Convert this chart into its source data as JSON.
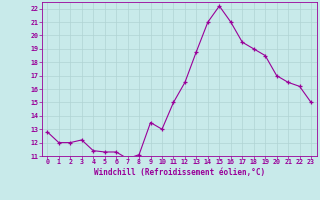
{
  "x": [
    0,
    1,
    2,
    3,
    4,
    5,
    6,
    7,
    8,
    9,
    10,
    11,
    12,
    13,
    14,
    15,
    16,
    17,
    18,
    19,
    20,
    21,
    22,
    23
  ],
  "y": [
    12.8,
    12.0,
    12.0,
    12.2,
    11.4,
    11.3,
    11.3,
    10.8,
    11.1,
    13.5,
    13.0,
    15.0,
    16.5,
    18.8,
    21.0,
    22.2,
    21.0,
    19.5,
    19.0,
    18.5,
    17.0,
    16.5,
    16.2,
    15.0
  ],
  "line_color": "#990099",
  "marker_color": "#990099",
  "bg_color": "#c8eaea",
  "grid_color": "#b0d4d4",
  "xlabel": "Windchill (Refroidissement éolien,°C)",
  "tick_color": "#990099",
  "ylim": [
    11,
    22.5
  ],
  "xlim": [
    -0.5,
    23.5
  ],
  "yticks": [
    11,
    12,
    13,
    14,
    15,
    16,
    17,
    18,
    19,
    20,
    21,
    22
  ],
  "xticks": [
    0,
    1,
    2,
    3,
    4,
    5,
    6,
    7,
    8,
    9,
    10,
    11,
    12,
    13,
    14,
    15,
    16,
    17,
    18,
    19,
    20,
    21,
    22,
    23
  ]
}
